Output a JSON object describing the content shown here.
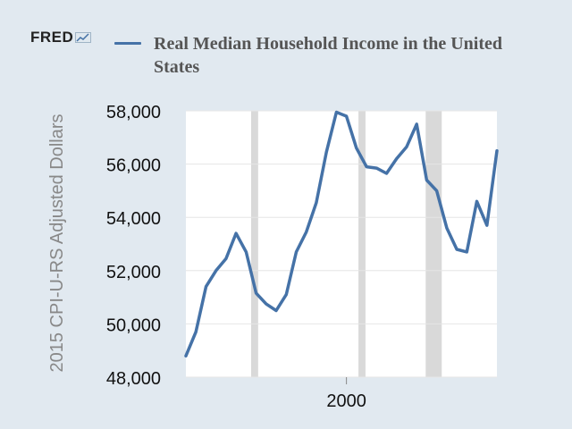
{
  "logo": {
    "text": "FRED"
  },
  "chart_data": {
    "type": "line",
    "title": "",
    "xlabel": "",
    "ylabel": "2015 CPI-U-RS Adjusted Dollars",
    "ylim": [
      48000,
      58000
    ],
    "yticks": [
      48000,
      50000,
      52000,
      54000,
      56000,
      58000
    ],
    "ytick_labels": [
      "48,000",
      "50,000",
      "52,000",
      "54,000",
      "56,000",
      "58,000"
    ],
    "xlim": [
      1984,
      2015
    ],
    "xticks": [
      2000
    ],
    "xtick_labels": [
      "2000"
    ],
    "grid": "horizontal",
    "legend": "top",
    "recessions": [
      [
        1990.5,
        1991.2
      ],
      [
        2001.2,
        2001.9
      ],
      [
        2007.9,
        2009.5
      ]
    ],
    "colors": {
      "line": "#4572a7",
      "recession": "#d9d9d9",
      "background": "#e1e9f0",
      "plot": "#ffffff"
    },
    "series": [
      {
        "name": "Real Median Household Income in the United States",
        "x": [
          1984,
          1985,
          1986,
          1987,
          1988,
          1989,
          1990,
          1991,
          1992,
          1993,
          1994,
          1995,
          1996,
          1997,
          1998,
          1999,
          2000,
          2001,
          2002,
          2003,
          2004,
          2005,
          2006,
          2007,
          2008,
          2009,
          2010,
          2011,
          2012,
          2013,
          2014,
          2015
        ],
        "values": [
          48800,
          49700,
          51400,
          52000,
          52450,
          53400,
          52700,
          51150,
          50750,
          50500,
          51100,
          52700,
          53450,
          54550,
          56450,
          57950,
          57800,
          56600,
          55900,
          55850,
          55650,
          56200,
          56650,
          57500,
          55400,
          55000,
          53600,
          52800,
          52700,
          54600,
          53700,
          56500
        ]
      }
    ]
  }
}
